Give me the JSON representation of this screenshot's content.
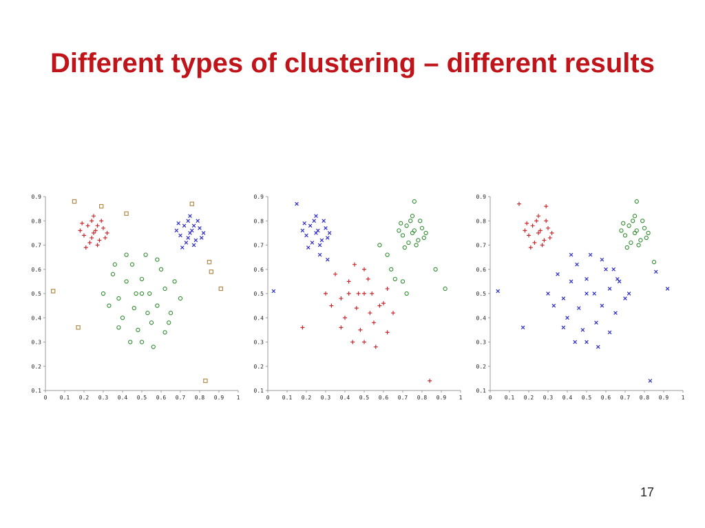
{
  "slide": {
    "title": "Different types of clustering – different results",
    "page_number": "17"
  },
  "colors": {
    "title": "#c0141b",
    "red": "#c8282d",
    "blue": "#2a2ac8",
    "green": "#2e8b2e",
    "noise": "#b08a4a"
  },
  "chart_data": [
    {
      "type": "scatter",
      "xlim": [
        0,
        1
      ],
      "ylim": [
        0.1,
        0.9
      ],
      "x_ticks": [
        "0",
        "0.1",
        "0.2",
        "0.3",
        "0.4",
        "0.5",
        "0.6",
        "0.7",
        "0.8",
        "0.9",
        "1"
      ],
      "y_ticks": [
        "0.1",
        "0.2",
        "0.3",
        "0.4",
        "0.5",
        "0.6",
        "0.7",
        "0.8",
        "0.9"
      ],
      "series": [
        {
          "marker": "plus",
          "color": "#c8282d",
          "values": [
            [
              0.25,
              0.75
            ],
            [
              0.22,
              0.78
            ],
            [
              0.28,
              0.72
            ],
            [
              0.2,
              0.74
            ],
            [
              0.3,
              0.77
            ],
            [
              0.24,
              0.8
            ],
            [
              0.27,
              0.7
            ],
            [
              0.19,
              0.79
            ],
            [
              0.31,
              0.73
            ],
            [
              0.23,
              0.71
            ],
            [
              0.26,
              0.76
            ],
            [
              0.21,
              0.69
            ],
            [
              0.29,
              0.8
            ],
            [
              0.18,
              0.76
            ],
            [
              0.32,
              0.75
            ],
            [
              0.25,
              0.82
            ],
            [
              0.24,
              0.73
            ],
            [
              0.27,
              0.78
            ]
          ]
        },
        {
          "marker": "cross",
          "color": "#2a2ac8",
          "values": [
            [
              0.75,
              0.75
            ],
            [
              0.72,
              0.78
            ],
            [
              0.78,
              0.72
            ],
            [
              0.7,
              0.74
            ],
            [
              0.8,
              0.77
            ],
            [
              0.74,
              0.8
            ],
            [
              0.77,
              0.7
            ],
            [
              0.69,
              0.79
            ],
            [
              0.81,
              0.73
            ],
            [
              0.73,
              0.71
            ],
            [
              0.76,
              0.76
            ],
            [
              0.71,
              0.69
            ],
            [
              0.79,
              0.8
            ],
            [
              0.68,
              0.76
            ],
            [
              0.82,
              0.75
            ],
            [
              0.75,
              0.82
            ],
            [
              0.74,
              0.73
            ],
            [
              0.77,
              0.78
            ]
          ]
        },
        {
          "marker": "circle",
          "color": "#2e8b2e",
          "values": [
            [
              0.5,
              0.5
            ],
            [
              0.42,
              0.55
            ],
            [
              0.58,
              0.45
            ],
            [
              0.38,
              0.48
            ],
            [
              0.62,
              0.52
            ],
            [
              0.45,
              0.62
            ],
            [
              0.55,
              0.38
            ],
            [
              0.35,
              0.58
            ],
            [
              0.65,
              0.42
            ],
            [
              0.48,
              0.35
            ],
            [
              0.52,
              0.66
            ],
            [
              0.4,
              0.4
            ],
            [
              0.6,
              0.6
            ],
            [
              0.44,
              0.3
            ],
            [
              0.56,
              0.28
            ],
            [
              0.33,
              0.45
            ],
            [
              0.67,
              0.55
            ],
            [
              0.5,
              0.56
            ],
            [
              0.46,
              0.44
            ],
            [
              0.54,
              0.5
            ],
            [
              0.38,
              0.36
            ],
            [
              0.62,
              0.34
            ],
            [
              0.42,
              0.66
            ],
            [
              0.58,
              0.64
            ],
            [
              0.3,
              0.5
            ],
            [
              0.7,
              0.48
            ],
            [
              0.5,
              0.3
            ],
            [
              0.47,
              0.5
            ],
            [
              0.53,
              0.42
            ],
            [
              0.36,
              0.62
            ],
            [
              0.64,
              0.38
            ]
          ]
        },
        {
          "marker": "square",
          "color": "#b08a4a",
          "values": [
            [
              0.15,
              0.88
            ],
            [
              0.29,
              0.86
            ],
            [
              0.42,
              0.83
            ],
            [
              0.76,
              0.87
            ],
            [
              0.85,
              0.63
            ],
            [
              0.86,
              0.59
            ],
            [
              0.91,
              0.52
            ],
            [
              0.04,
              0.51
            ],
            [
              0.17,
              0.36
            ],
            [
              0.83,
              0.14
            ]
          ]
        }
      ]
    },
    {
      "type": "scatter",
      "xlim": [
        0,
        1
      ],
      "ylim": [
        0.1,
        0.9
      ],
      "x_ticks": [
        "0",
        "0.1",
        "0.2",
        "0.3",
        "0.4",
        "0.5",
        "0.6",
        "0.7",
        "0.8",
        "0.9",
        "1"
      ],
      "y_ticks": [
        "0.1",
        "0.2",
        "0.3",
        "0.4",
        "0.5",
        "0.6",
        "0.7",
        "0.8",
        "0.9"
      ],
      "series": [
        {
          "marker": "cross",
          "color": "#2a2ac8",
          "values": [
            [
              0.25,
              0.75
            ],
            [
              0.22,
              0.78
            ],
            [
              0.28,
              0.72
            ],
            [
              0.2,
              0.74
            ],
            [
              0.3,
              0.77
            ],
            [
              0.24,
              0.8
            ],
            [
              0.27,
              0.7
            ],
            [
              0.19,
              0.79
            ],
            [
              0.31,
              0.73
            ],
            [
              0.23,
              0.71
            ],
            [
              0.26,
              0.76
            ],
            [
              0.21,
              0.69
            ],
            [
              0.29,
              0.8
            ],
            [
              0.18,
              0.76
            ],
            [
              0.32,
              0.75
            ],
            [
              0.25,
              0.82
            ],
            [
              0.15,
              0.87
            ],
            [
              0.03,
              0.51
            ],
            [
              0.31,
              0.64
            ],
            [
              0.27,
              0.66
            ]
          ]
        },
        {
          "marker": "circle",
          "color": "#2e8b2e",
          "values": [
            [
              0.75,
              0.75
            ],
            [
              0.72,
              0.78
            ],
            [
              0.78,
              0.72
            ],
            [
              0.7,
              0.74
            ],
            [
              0.8,
              0.77
            ],
            [
              0.74,
              0.8
            ],
            [
              0.77,
              0.7
            ],
            [
              0.69,
              0.79
            ],
            [
              0.81,
              0.73
            ],
            [
              0.73,
              0.71
            ],
            [
              0.76,
              0.76
            ],
            [
              0.71,
              0.69
            ],
            [
              0.79,
              0.8
            ],
            [
              0.68,
              0.76
            ],
            [
              0.82,
              0.75
            ],
            [
              0.75,
              0.82
            ],
            [
              0.64,
              0.6
            ],
            [
              0.66,
              0.56
            ],
            [
              0.72,
              0.5
            ],
            [
              0.7,
              0.55
            ],
            [
              0.62,
              0.66
            ],
            [
              0.58,
              0.7
            ],
            [
              0.76,
              0.88
            ],
            [
              0.92,
              0.52
            ],
            [
              0.87,
              0.6
            ]
          ]
        },
        {
          "marker": "plus",
          "color": "#c8282d",
          "values": [
            [
              0.5,
              0.5
            ],
            [
              0.42,
              0.55
            ],
            [
              0.58,
              0.45
            ],
            [
              0.38,
              0.48
            ],
            [
              0.62,
              0.52
            ],
            [
              0.45,
              0.62
            ],
            [
              0.55,
              0.38
            ],
            [
              0.35,
              0.58
            ],
            [
              0.65,
              0.42
            ],
            [
              0.48,
              0.35
            ],
            [
              0.52,
              0.56
            ],
            [
              0.4,
              0.4
            ],
            [
              0.6,
              0.46
            ],
            [
              0.44,
              0.3
            ],
            [
              0.56,
              0.28
            ],
            [
              0.33,
              0.45
            ],
            [
              0.5,
              0.6
            ],
            [
              0.46,
              0.44
            ],
            [
              0.54,
              0.5
            ],
            [
              0.38,
              0.36
            ],
            [
              0.62,
              0.34
            ],
            [
              0.42,
              0.5
            ],
            [
              0.3,
              0.5
            ],
            [
              0.5,
              0.3
            ],
            [
              0.47,
              0.5
            ],
            [
              0.53,
              0.42
            ],
            [
              0.18,
              0.36
            ],
            [
              0.84,
              0.14
            ]
          ]
        }
      ]
    },
    {
      "type": "scatter",
      "xlim": [
        0,
        1
      ],
      "ylim": [
        0.1,
        0.9
      ],
      "x_ticks": [
        "0",
        "0.1",
        "0.2",
        "0.3",
        "0.4",
        "0.5",
        "0.6",
        "0.7",
        "0.8",
        "0.9",
        "1"
      ],
      "y_ticks": [
        "0.1",
        "0.2",
        "0.3",
        "0.4",
        "0.5",
        "0.6",
        "0.7",
        "0.8",
        "0.9"
      ],
      "series": [
        {
          "marker": "plus",
          "color": "#c8282d",
          "values": [
            [
              0.25,
              0.75
            ],
            [
              0.22,
              0.78
            ],
            [
              0.28,
              0.72
            ],
            [
              0.2,
              0.74
            ],
            [
              0.3,
              0.77
            ],
            [
              0.24,
              0.8
            ],
            [
              0.27,
              0.7
            ],
            [
              0.19,
              0.79
            ],
            [
              0.31,
              0.73
            ],
            [
              0.23,
              0.71
            ],
            [
              0.26,
              0.76
            ],
            [
              0.21,
              0.69
            ],
            [
              0.29,
              0.8
            ],
            [
              0.18,
              0.76
            ],
            [
              0.32,
              0.75
            ],
            [
              0.25,
              0.82
            ],
            [
              0.15,
              0.87
            ],
            [
              0.29,
              0.86
            ]
          ]
        },
        {
          "marker": "circle",
          "color": "#2e8b2e",
          "values": [
            [
              0.75,
              0.75
            ],
            [
              0.72,
              0.78
            ],
            [
              0.78,
              0.72
            ],
            [
              0.7,
              0.74
            ],
            [
              0.8,
              0.77
            ],
            [
              0.74,
              0.8
            ],
            [
              0.77,
              0.7
            ],
            [
              0.69,
              0.79
            ],
            [
              0.81,
              0.73
            ],
            [
              0.73,
              0.71
            ],
            [
              0.76,
              0.76
            ],
            [
              0.71,
              0.69
            ],
            [
              0.79,
              0.8
            ],
            [
              0.68,
              0.76
            ],
            [
              0.82,
              0.75
            ],
            [
              0.75,
              0.82
            ],
            [
              0.76,
              0.88
            ],
            [
              0.85,
              0.63
            ]
          ]
        },
        {
          "marker": "cross",
          "color": "#2a2ac8",
          "values": [
            [
              0.5,
              0.5
            ],
            [
              0.42,
              0.55
            ],
            [
              0.58,
              0.45
            ],
            [
              0.38,
              0.48
            ],
            [
              0.62,
              0.52
            ],
            [
              0.45,
              0.62
            ],
            [
              0.55,
              0.38
            ],
            [
              0.35,
              0.58
            ],
            [
              0.65,
              0.42
            ],
            [
              0.48,
              0.35
            ],
            [
              0.52,
              0.66
            ],
            [
              0.4,
              0.4
            ],
            [
              0.6,
              0.6
            ],
            [
              0.44,
              0.3
            ],
            [
              0.56,
              0.28
            ],
            [
              0.33,
              0.45
            ],
            [
              0.67,
              0.55
            ],
            [
              0.5,
              0.56
            ],
            [
              0.46,
              0.44
            ],
            [
              0.54,
              0.5
            ],
            [
              0.38,
              0.36
            ],
            [
              0.62,
              0.34
            ],
            [
              0.42,
              0.66
            ],
            [
              0.58,
              0.64
            ],
            [
              0.3,
              0.5
            ],
            [
              0.7,
              0.48
            ],
            [
              0.5,
              0.3
            ],
            [
              0.64,
              0.6
            ],
            [
              0.66,
              0.56
            ],
            [
              0.72,
              0.5
            ],
            [
              0.92,
              0.52
            ],
            [
              0.86,
              0.59
            ],
            [
              0.04,
              0.51
            ],
            [
              0.17,
              0.36
            ],
            [
              0.83,
              0.14
            ]
          ]
        }
      ]
    }
  ]
}
